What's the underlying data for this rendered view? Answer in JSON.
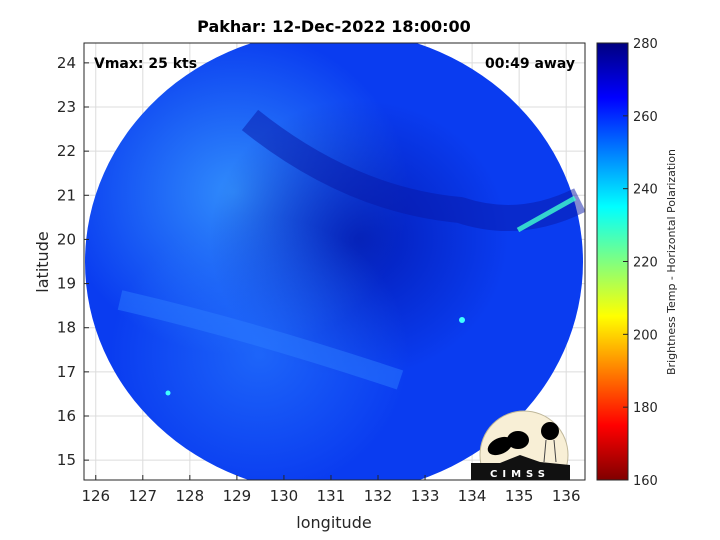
{
  "chart_data": {
    "type": "heatmap",
    "title": "Pakhar: 12-Dec-2022 18:00:00",
    "xlabel": "longitude",
    "ylabel": "latitude",
    "xlim": [
      125.75,
      136.4
    ],
    "ylim": [
      14.55,
      24.45
    ],
    "xticks": [
      126,
      127,
      128,
      129,
      130,
      131,
      132,
      133,
      134,
      135,
      136
    ],
    "yticks": [
      15,
      16,
      17,
      18,
      19,
      20,
      21,
      22,
      23,
      24
    ],
    "grid": true,
    "annotations": {
      "vmax": "Vmax: 25 kts",
      "time_away": "00:49 away"
    },
    "colorbar": {
      "label": "Brightness Temp - Horizontal Polarization",
      "range": [
        160,
        280
      ],
      "ticks": [
        160,
        180,
        200,
        220,
        240,
        260,
        280
      ],
      "colormap": "jet"
    },
    "logo": "CIMSS"
  }
}
